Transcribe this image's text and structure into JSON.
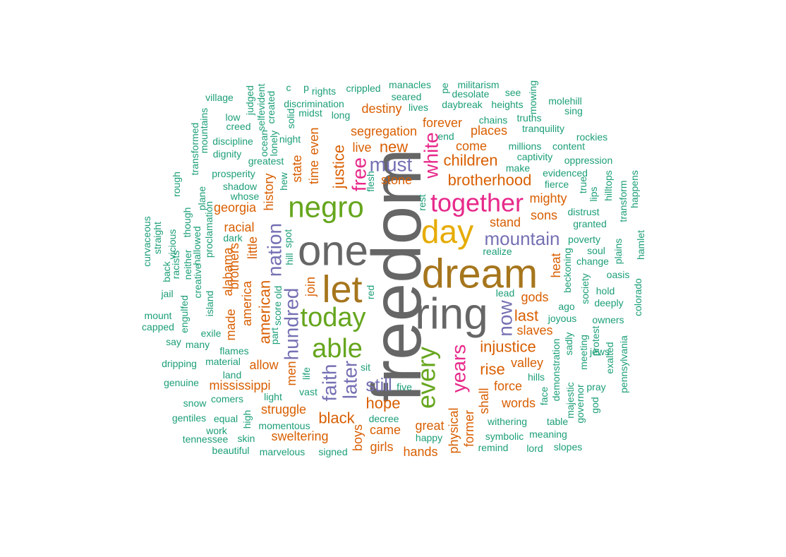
{
  "colors": {
    "teal": "#1B9E77",
    "orange": "#D95F02",
    "purple": "#7570B3",
    "magenta": "#E7298A",
    "green": "#66A61E",
    "gold": "#E6AB02",
    "brown": "#A6761D",
    "gray": "#666666"
  },
  "words": [
    {
      "text": "freedom",
      "color": "gray"
    },
    {
      "text": "ring",
      "color": "gray"
    },
    {
      "text": "one",
      "color": "gray"
    },
    {
      "text": "dream",
      "color": "brown"
    },
    {
      "text": "let",
      "color": "brown"
    },
    {
      "text": "day",
      "color": "gold"
    },
    {
      "text": "negro",
      "color": "green"
    },
    {
      "text": "together",
      "color": "magenta"
    },
    {
      "text": "today",
      "color": "green"
    },
    {
      "text": "able",
      "color": "green"
    },
    {
      "text": "every",
      "color": "green"
    },
    {
      "text": "mountain",
      "color": "purple"
    },
    {
      "text": "white",
      "color": "magenta"
    },
    {
      "text": "free",
      "color": "magenta"
    },
    {
      "text": "must",
      "color": "purple"
    },
    {
      "text": "years",
      "color": "magenta"
    },
    {
      "text": "nation",
      "color": "purple"
    },
    {
      "text": "hundred",
      "color": "purple"
    },
    {
      "text": "faith",
      "color": "purple"
    },
    {
      "text": "later",
      "color": "purple"
    },
    {
      "text": "now",
      "color": "purple"
    },
    {
      "text": "still",
      "color": "purple"
    },
    {
      "text": "brotherhood",
      "color": "orange"
    },
    {
      "text": "children",
      "color": "orange"
    },
    {
      "text": "new",
      "color": "orange"
    },
    {
      "text": "justice",
      "color": "orange"
    },
    {
      "text": "injustice",
      "color": "orange"
    },
    {
      "text": "rise",
      "color": "orange"
    },
    {
      "text": "black",
      "color": "orange"
    },
    {
      "text": "hope",
      "color": "orange"
    },
    {
      "text": "american",
      "color": "orange"
    },
    {
      "text": "segregation",
      "color": "orange"
    },
    {
      "text": "places",
      "color": "orange"
    },
    {
      "text": "come",
      "color": "orange"
    },
    {
      "text": "forever",
      "color": "orange"
    },
    {
      "text": "destiny",
      "color": "orange"
    },
    {
      "text": "time",
      "color": "orange"
    },
    {
      "text": "even",
      "color": "orange"
    },
    {
      "text": "state",
      "color": "orange"
    },
    {
      "text": "little",
      "color": "orange"
    },
    {
      "text": "join",
      "color": "orange"
    },
    {
      "text": "men",
      "color": "orange"
    },
    {
      "text": "shall",
      "color": "orange"
    },
    {
      "text": "last",
      "color": "orange"
    },
    {
      "text": "slaves",
      "color": "orange"
    },
    {
      "text": "heat",
      "color": "orange"
    },
    {
      "text": "sons",
      "color": "orange"
    },
    {
      "text": "mighty",
      "color": "orange"
    },
    {
      "text": "stand",
      "color": "orange"
    },
    {
      "text": "gods",
      "color": "orange"
    },
    {
      "text": "valley",
      "color": "orange"
    },
    {
      "text": "force",
      "color": "orange"
    },
    {
      "text": "words",
      "color": "orange"
    },
    {
      "text": "great",
      "color": "orange"
    },
    {
      "text": "former",
      "color": "orange"
    },
    {
      "text": "mississippi",
      "color": "orange"
    },
    {
      "text": "struggle",
      "color": "orange"
    },
    {
      "text": "sweltering",
      "color": "orange"
    },
    {
      "text": "allow",
      "color": "orange"
    },
    {
      "text": "georgia",
      "color": "orange"
    },
    {
      "text": "racial",
      "color": "orange"
    },
    {
      "text": "alabama",
      "color": "orange"
    },
    {
      "text": "brothers",
      "color": "orange"
    },
    {
      "text": "america",
      "color": "orange"
    },
    {
      "text": "made",
      "color": "orange"
    },
    {
      "text": "history",
      "color": "orange"
    },
    {
      "text": "live",
      "color": "orange"
    },
    {
      "text": "stone",
      "color": "orange"
    },
    {
      "text": "came",
      "color": "orange"
    },
    {
      "text": "girls",
      "color": "orange"
    },
    {
      "text": "boys",
      "color": "orange"
    },
    {
      "text": "hands",
      "color": "orange"
    },
    {
      "text": "physical",
      "color": "orange"
    },
    {
      "text": "crippled",
      "color": "teal"
    },
    {
      "text": "manacles",
      "color": "teal"
    },
    {
      "text": "militarism",
      "color": "teal"
    },
    {
      "text": "rights",
      "color": "teal"
    },
    {
      "text": "seared",
      "color": "teal"
    },
    {
      "text": "desolate",
      "color": "teal"
    },
    {
      "text": "see",
      "color": "teal"
    },
    {
      "text": "discrimination",
      "color": "teal"
    },
    {
      "text": "daybreak",
      "color": "teal"
    },
    {
      "text": "heights",
      "color": "teal"
    },
    {
      "text": "molehill",
      "color": "teal"
    },
    {
      "text": "sing",
      "color": "teal"
    },
    {
      "text": "midst",
      "color": "teal"
    },
    {
      "text": "lives",
      "color": "teal"
    },
    {
      "text": "long",
      "color": "teal"
    },
    {
      "text": "chains",
      "color": "teal"
    },
    {
      "text": "truths",
      "color": "teal"
    },
    {
      "text": "tranquility",
      "color": "teal"
    },
    {
      "text": "end",
      "color": "teal"
    },
    {
      "text": "rockies",
      "color": "teal"
    },
    {
      "text": "village",
      "color": "teal"
    },
    {
      "text": "low",
      "color": "teal"
    },
    {
      "text": "creed",
      "color": "teal"
    },
    {
      "text": "night",
      "color": "teal"
    },
    {
      "text": "discipline",
      "color": "teal"
    },
    {
      "text": "dignity",
      "color": "teal"
    },
    {
      "text": "greatest",
      "color": "teal"
    },
    {
      "text": "millions",
      "color": "teal"
    },
    {
      "text": "content",
      "color": "teal"
    },
    {
      "text": "captivity",
      "color": "teal"
    },
    {
      "text": "oppression",
      "color": "teal"
    },
    {
      "text": "make",
      "color": "teal"
    },
    {
      "text": "evidenced",
      "color": "teal"
    },
    {
      "text": "prosperity",
      "color": "teal"
    },
    {
      "text": "shadow",
      "color": "teal"
    },
    {
      "text": "fierce",
      "color": "teal"
    },
    {
      "text": "whose",
      "color": "teal"
    },
    {
      "text": "distrust",
      "color": "teal"
    },
    {
      "text": "granted",
      "color": "teal"
    },
    {
      "text": "poverty",
      "color": "teal"
    },
    {
      "text": "soul",
      "color": "teal"
    },
    {
      "text": "realize",
      "color": "teal"
    },
    {
      "text": "change",
      "color": "teal"
    },
    {
      "text": "oasis",
      "color": "teal"
    },
    {
      "text": "dark",
      "color": "teal"
    },
    {
      "text": "hold",
      "color": "teal"
    },
    {
      "text": "lead",
      "color": "teal"
    },
    {
      "text": "deeply",
      "color": "teal"
    },
    {
      "text": "ago",
      "color": "teal"
    },
    {
      "text": "joyous",
      "color": "teal"
    },
    {
      "text": "owners",
      "color": "teal"
    },
    {
      "text": "mount",
      "color": "teal"
    },
    {
      "text": "capped",
      "color": "teal"
    },
    {
      "text": "jail",
      "color": "teal"
    },
    {
      "text": "exile",
      "color": "teal"
    },
    {
      "text": "say",
      "color": "teal"
    },
    {
      "text": "many",
      "color": "teal"
    },
    {
      "text": "flames",
      "color": "teal"
    },
    {
      "text": "dripping",
      "color": "teal"
    },
    {
      "text": "material",
      "color": "teal"
    },
    {
      "text": "land",
      "color": "teal"
    },
    {
      "text": "jews",
      "color": "teal"
    },
    {
      "text": "hills",
      "color": "teal"
    },
    {
      "text": "pray",
      "color": "teal"
    },
    {
      "text": "genuine",
      "color": "teal"
    },
    {
      "text": "five",
      "color": "teal"
    },
    {
      "text": "sit",
      "color": "teal"
    },
    {
      "text": "light",
      "color": "teal"
    },
    {
      "text": "vast",
      "color": "teal"
    },
    {
      "text": "snow",
      "color": "teal"
    },
    {
      "text": "comers",
      "color": "teal"
    },
    {
      "text": "decree",
      "color": "teal"
    },
    {
      "text": "gentiles",
      "color": "teal"
    },
    {
      "text": "equal",
      "color": "teal"
    },
    {
      "text": "momentous",
      "color": "teal"
    },
    {
      "text": "happy",
      "color": "teal"
    },
    {
      "text": "withering",
      "color": "teal"
    },
    {
      "text": "table",
      "color": "teal"
    },
    {
      "text": "work",
      "color": "teal"
    },
    {
      "text": "symbolic",
      "color": "teal"
    },
    {
      "text": "meaning",
      "color": "teal"
    },
    {
      "text": "tennessee",
      "color": "teal"
    },
    {
      "text": "skin",
      "color": "teal"
    },
    {
      "text": "remind",
      "color": "teal"
    },
    {
      "text": "lord",
      "color": "teal"
    },
    {
      "text": "slopes",
      "color": "teal"
    },
    {
      "text": "beautiful",
      "color": "teal"
    },
    {
      "text": "marvelous",
      "color": "teal"
    },
    {
      "text": "signed",
      "color": "teal"
    },
    {
      "text": "mountains",
      "color": "teal"
    },
    {
      "text": "transformed",
      "color": "teal"
    },
    {
      "text": "rough",
      "color": "teal"
    },
    {
      "text": "plane",
      "color": "teal"
    },
    {
      "text": "though",
      "color": "teal"
    },
    {
      "text": "hallowed",
      "color": "teal"
    },
    {
      "text": "proclamation",
      "color": "teal"
    },
    {
      "text": "creative",
      "color": "teal"
    },
    {
      "text": "island",
      "color": "teal"
    },
    {
      "text": "engulfed",
      "color": "teal"
    },
    {
      "text": "neither",
      "color": "teal"
    },
    {
      "text": "vicious",
      "color": "teal"
    },
    {
      "text": "racists",
      "color": "teal"
    },
    {
      "text": "straight",
      "color": "teal"
    },
    {
      "text": "back",
      "color": "teal"
    },
    {
      "text": "curvaceous",
      "color": "teal"
    },
    {
      "text": "judged",
      "color": "teal"
    },
    {
      "text": "selfevident",
      "color": "teal"
    },
    {
      "text": "created",
      "color": "teal"
    },
    {
      "text": "ocean",
      "color": "teal"
    },
    {
      "text": "lonely",
      "color": "teal"
    },
    {
      "text": "solid",
      "color": "teal"
    },
    {
      "text": "hew",
      "color": "teal"
    },
    {
      "text": "flesh",
      "color": "teal"
    },
    {
      "text": "rest",
      "color": "teal"
    },
    {
      "text": "old",
      "color": "teal"
    },
    {
      "text": "part",
      "color": "teal"
    },
    {
      "text": "score",
      "color": "teal"
    },
    {
      "text": "spot",
      "color": "teal"
    },
    {
      "text": "hill",
      "color": "teal"
    },
    {
      "text": "red",
      "color": "teal"
    },
    {
      "text": "life",
      "color": "teal"
    },
    {
      "text": "high",
      "color": "teal"
    },
    {
      "text": "true",
      "color": "teal"
    },
    {
      "text": "lips",
      "color": "teal"
    },
    {
      "text": "hilltops",
      "color": "teal"
    },
    {
      "text": "transform",
      "color": "teal"
    },
    {
      "text": "happens",
      "color": "teal"
    },
    {
      "text": "plains",
      "color": "teal"
    },
    {
      "text": "hamlet",
      "color": "teal"
    },
    {
      "text": "beckoning",
      "color": "teal"
    },
    {
      "text": "society",
      "color": "teal"
    },
    {
      "text": "colorado",
      "color": "teal"
    },
    {
      "text": "exalted",
      "color": "teal"
    },
    {
      "text": "pennsylvania",
      "color": "teal"
    },
    {
      "text": "protest",
      "color": "teal"
    },
    {
      "text": "meeting",
      "color": "teal"
    },
    {
      "text": "sadly",
      "color": "teal"
    },
    {
      "text": "demonstration",
      "color": "teal"
    },
    {
      "text": "face",
      "color": "teal"
    },
    {
      "text": "majestic",
      "color": "teal"
    },
    {
      "text": "governor",
      "color": "teal"
    },
    {
      "text": "god",
      "color": "teal"
    },
    {
      "text": "mowing",
      "color": "teal"
    },
    {
      "text": "c",
      "color": "teal"
    },
    {
      "text": "p",
      "color": "teal"
    },
    {
      "text": "pe",
      "color": "teal"
    }
  ]
}
